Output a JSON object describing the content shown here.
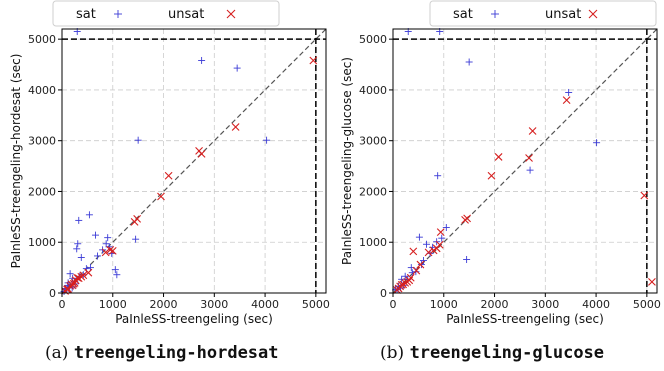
{
  "legend": {
    "sat": "sat",
    "unsat": "unsat"
  },
  "colors": {
    "sat": "#3b3bd6",
    "unsat": "#d61f1f",
    "diagonal": "#555555",
    "timeout_line": "#000000"
  },
  "chart_data": [
    {
      "type": "scatter",
      "caption_prefix": "(a)",
      "caption_name": "treengeling-hordesat",
      "xlabel": "PaInleSS-treengeling (sec)",
      "ylabel": "PaInleSS-treengeling-hordesat (sec)",
      "xlim": [
        0,
        5200
      ],
      "ylim": [
        0,
        5200
      ],
      "xticks": [
        0,
        1000,
        2000,
        3000,
        4000,
        5000
      ],
      "yticks": [
        0,
        1000,
        2000,
        3000,
        4000,
        5000
      ],
      "timeout": 5000,
      "grid": true,
      "legend_position": "top-center",
      "series": [
        {
          "name": "sat",
          "marker": "plus",
          "points": [
            [
              300,
              5150
            ],
            [
              2750,
              4580
            ],
            [
              3450,
              4430
            ],
            [
              4030,
              3010
            ],
            [
              1500,
              3010
            ],
            [
              1450,
              1060
            ],
            [
              330,
              1430
            ],
            [
              540,
              1540
            ],
            [
              660,
              1140
            ],
            [
              310,
              970
            ],
            [
              290,
              870
            ],
            [
              380,
              700
            ],
            [
              160,
              380
            ],
            [
              210,
              290
            ],
            [
              110,
              150
            ],
            [
              60,
              60
            ],
            [
              80,
              90
            ],
            [
              120,
              200
            ],
            [
              250,
              230
            ],
            [
              350,
              330
            ],
            [
              420,
              360
            ],
            [
              480,
              480
            ],
            [
              560,
              500
            ],
            [
              700,
              730
            ],
            [
              800,
              850
            ],
            [
              870,
              970
            ],
            [
              900,
              1090
            ],
            [
              930,
              910
            ],
            [
              980,
              780
            ],
            [
              1050,
              460
            ],
            [
              1080,
              360
            ],
            [
              150,
              120
            ],
            [
              40,
              30
            ],
            [
              200,
              100
            ],
            [
              260,
              180
            ]
          ]
        },
        {
          "name": "unsat",
          "marker": "x",
          "points": [
            [
              4950,
              4580
            ],
            [
              3420,
              3270
            ],
            [
              2750,
              2740
            ],
            [
              2700,
              2800
            ],
            [
              2100,
              2310
            ],
            [
              1950,
              1900
            ],
            [
              1480,
              1460
            ],
            [
              1430,
              1400
            ],
            [
              1000,
              830
            ],
            [
              950,
              850
            ],
            [
              860,
              800
            ],
            [
              520,
              400
            ],
            [
              420,
              350
            ],
            [
              380,
              320
            ],
            [
              330,
              290
            ],
            [
              300,
              300
            ],
            [
              270,
              250
            ],
            [
              250,
              200
            ],
            [
              230,
              180
            ],
            [
              210,
              150
            ],
            [
              190,
              170
            ],
            [
              160,
              140
            ],
            [
              120,
              80
            ],
            [
              100,
              70
            ],
            [
              60,
              40
            ]
          ]
        }
      ]
    },
    {
      "type": "scatter",
      "caption_prefix": "(b)",
      "caption_name": "treengeling-glucose",
      "xlabel": "PaInleSS-treengeling (sec)",
      "ylabel": "PaInleSS-treengeling-glucose (sec)",
      "xlim": [
        0,
        5200
      ],
      "ylim": [
        0,
        5200
      ],
      "xticks": [
        0,
        1000,
        2000,
        3000,
        4000,
        5000
      ],
      "yticks": [
        0,
        1000,
        2000,
        3000,
        4000,
        5000
      ],
      "timeout": 5000,
      "grid": true,
      "legend_position": "top-center",
      "series": [
        {
          "name": "sat",
          "marker": "plus",
          "points": [
            [
              300,
              5150
            ],
            [
              920,
              5150
            ],
            [
              1500,
              4550
            ],
            [
              3460,
              3950
            ],
            [
              4010,
              2960
            ],
            [
              880,
              2310
            ],
            [
              2700,
              2420
            ],
            [
              1450,
              660
            ],
            [
              520,
              1100
            ],
            [
              660,
              960
            ],
            [
              780,
              900
            ],
            [
              860,
              1010
            ],
            [
              960,
              1080
            ],
            [
              1050,
              1290
            ],
            [
              360,
              500
            ],
            [
              240,
              330
            ],
            [
              170,
              270
            ],
            [
              110,
              130
            ],
            [
              80,
              80
            ],
            [
              50,
              60
            ],
            [
              200,
              150
            ],
            [
              290,
              270
            ],
            [
              380,
              400
            ],
            [
              450,
              420
            ],
            [
              560,
              560
            ],
            [
              600,
              640
            ],
            [
              730,
              780
            ],
            [
              150,
              100
            ]
          ]
        },
        {
          "name": "unsat",
          "marker": "x",
          "points": [
            [
              5100,
              220
            ],
            [
              4950,
              1920
            ],
            [
              3420,
              3800
            ],
            [
              2750,
              3190
            ],
            [
              2680,
              2660
            ],
            [
              2080,
              2680
            ],
            [
              1940,
              2310
            ],
            [
              1460,
              1470
            ],
            [
              1420,
              1440
            ],
            [
              940,
              1200
            ],
            [
              920,
              950
            ],
            [
              860,
              880
            ],
            [
              800,
              840
            ],
            [
              700,
              800
            ],
            [
              540,
              560
            ],
            [
              460,
              440
            ],
            [
              400,
              820
            ],
            [
              350,
              300
            ],
            [
              320,
              250
            ],
            [
              280,
              220
            ],
            [
              240,
              200
            ],
            [
              200,
              170
            ],
            [
              170,
              160
            ],
            [
              140,
              130
            ],
            [
              110,
              90
            ],
            [
              80,
              60
            ]
          ]
        }
      ]
    }
  ]
}
